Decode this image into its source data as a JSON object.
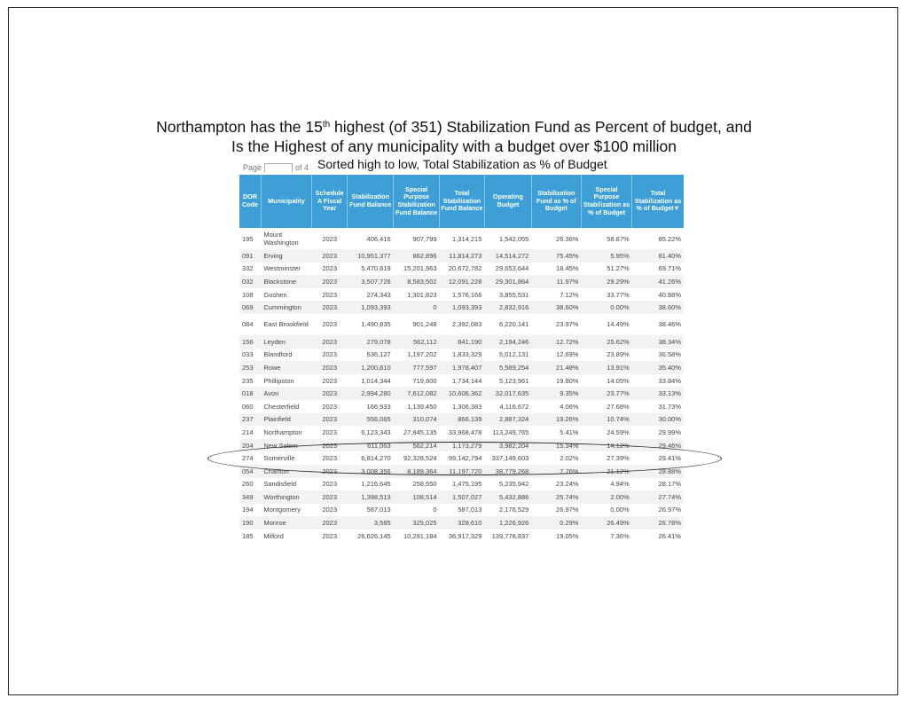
{
  "title": {
    "line1_pre": "Northampton has the 15",
    "line1_sup": "th",
    "line1_post": " highest (of 351) Stabilization Fund as Percent of budget, and",
    "line2": "Is the Highest of any municipality with a budget over $100 million"
  },
  "subtitle": "Sorted high to low, Total Stabilization as % of Budget",
  "pager": {
    "pre": "Page",
    "post": "of 4"
  },
  "table": {
    "headers": [
      "DOR Code",
      "Municipality",
      "Schedule A Fiscal Year",
      "Stabilization Fund Balance",
      "Special Purpose Stabilization Fund Balance",
      "Total Stabilization Fund Balance",
      "Operating Budget",
      "Stabilization Fund as % of Budget",
      "Special Purpose Stabilization as % of Budget",
      "Total Stabilization as % of Budget▼"
    ],
    "rows": [
      [
        "195",
        "Mount Washington",
        "2023",
        "406,416",
        "907,799",
        "1,314,215",
        "1,542,055",
        "26.36%",
        "58.87%",
        "85.22%"
      ],
      [
        "091",
        "Erving",
        "2023",
        "10,951,377",
        "862,896",
        "11,814,273",
        "14,514,272",
        "75.45%",
        "5.95%",
        "81.40%"
      ],
      [
        "332",
        "Westminster",
        "2023",
        "5,470,819",
        "15,201,963",
        "20,672,782",
        "29,653,644",
        "18.45%",
        "51.27%",
        "69.71%"
      ],
      [
        "032",
        "Blackstone",
        "2023",
        "3,507,726",
        "8,583,502",
        "12,091,228",
        "29,301,864",
        "11.97%",
        "29.29%",
        "41.26%"
      ],
      [
        "108",
        "Goshen",
        "2023",
        "274,343",
        "1,301,823",
        "1,576,166",
        "3,855,531",
        "7.12%",
        "33.77%",
        "40.88%"
      ],
      [
        "069",
        "Cummington",
        "2023",
        "1,093,393",
        "0",
        "1,093,393",
        "2,832,916",
        "38.60%",
        "0.00%",
        "38.60%"
      ],
      [
        "084",
        "East Brookfield",
        "2023",
        "1,490,835",
        "901,248",
        "2,392,083",
        "6,220,141",
        "23.97%",
        "14.49%",
        "38.46%"
      ],
      [
        "156",
        "Leyden",
        "2023",
        "279,078",
        "562,112",
        "841,190",
        "2,194,246",
        "12.72%",
        "25.62%",
        "38.34%"
      ],
      [
        "033",
        "Blandford",
        "2023",
        "636,127",
        "1,197,202",
        "1,833,329",
        "5,012,131",
        "12.69%",
        "23.89%",
        "36.58%"
      ],
      [
        "253",
        "Rowe",
        "2023",
        "1,200,810",
        "777,597",
        "1,978,407",
        "5,589,254",
        "21.48%",
        "13.91%",
        "35.40%"
      ],
      [
        "235",
        "Phillipston",
        "2023",
        "1,014,344",
        "719,800",
        "1,734,144",
        "5,123,961",
        "19.80%",
        "14.05%",
        "33.84%"
      ],
      [
        "018",
        "Avon",
        "2023",
        "2,994,280",
        "7,612,082",
        "10,606,362",
        "32,017,635",
        "9.35%",
        "23.77%",
        "33.13%"
      ],
      [
        "060",
        "Chesterfield",
        "2023",
        "166,933",
        "1,139,450",
        "1,306,383",
        "4,116,672",
        "4.06%",
        "27.68%",
        "31.73%"
      ],
      [
        "237",
        "Plainfield",
        "2023",
        "556,065",
        "310,074",
        "866,139",
        "2,887,324",
        "19.26%",
        "10.74%",
        "30.00%"
      ],
      [
        "214",
        "Northampton",
        "2023",
        "6,123,343",
        "27,845,135",
        "33,968,478",
        "113,249,765",
        "5.41%",
        "24.59%",
        "29.99%"
      ],
      [
        "204",
        "New Salem",
        "2023",
        "611,063",
        "562,214",
        "1,173,279",
        "3,982,204",
        "15.34%",
        "14.12%",
        "29.46%"
      ],
      [
        "274",
        "Somerville",
        "2023",
        "6,814,270",
        "92,328,524",
        "99,142,794",
        "337,149,603",
        "2.02%",
        "27.39%",
        "29.41%"
      ],
      [
        "054",
        "Charlton",
        "2023",
        "3,008,356",
        "8,189,364",
        "11,197,720",
        "38,779,268",
        "7.76%",
        "21.12%",
        "28.88%"
      ],
      [
        "260",
        "Sandisfield",
        "2023",
        "1,216,645",
        "258,550",
        "1,475,195",
        "5,235,942",
        "23.24%",
        "4.94%",
        "28.17%"
      ],
      [
        "349",
        "Worthington",
        "2023",
        "1,398,513",
        "108,514",
        "1,507,027",
        "5,432,886",
        "25.74%",
        "2.00%",
        "27.74%"
      ],
      [
        "194",
        "Montgomery",
        "2023",
        "587,013",
        "0",
        "587,013",
        "2,176,529",
        "26.97%",
        "0.00%",
        "26.97%"
      ],
      [
        "190",
        "Monroe",
        "2023",
        "3,585",
        "325,025",
        "328,610",
        "1,226,926",
        "0.29%",
        "26.49%",
        "26.78%"
      ],
      [
        "185",
        "Milford",
        "2023",
        "26,626,145",
        "10,291,184",
        "36,917,329",
        "139,778,837",
        "19.05%",
        "7.36%",
        "26.41%"
      ]
    ]
  },
  "colors": {
    "header_bg": "#3d9fd6",
    "header_text": "#ffffff",
    "stripe": "#f2f2f2"
  }
}
